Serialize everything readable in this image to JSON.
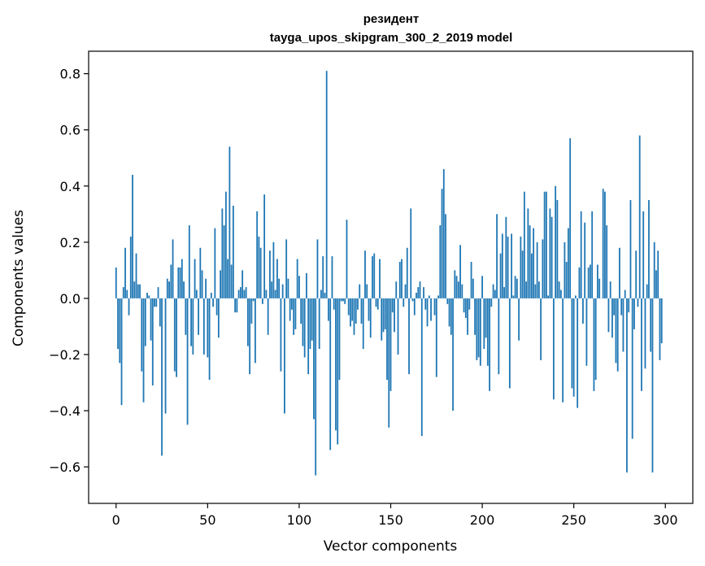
{
  "chart_data": {
    "type": "bar",
    "title": "резидент",
    "subtitle": "tayga_upos_skipgram_300_2_2019 model",
    "xlabel": "Vector components",
    "ylabel": "Components values",
    "xlim": [
      -15,
      315
    ],
    "ylim": [
      -0.73,
      0.88
    ],
    "xticks": [
      0,
      50,
      100,
      150,
      200,
      250,
      300
    ],
    "xtick_labels": [
      "0",
      "50",
      "100",
      "150",
      "200",
      "250",
      "300"
    ],
    "yticks": [
      -0.6,
      -0.4,
      -0.2,
      0.0,
      0.2,
      0.4,
      0.6,
      0.8
    ],
    "ytick_labels": [
      "−0.6",
      "−0.4",
      "−0.2",
      "0.0",
      "0.2",
      "0.4",
      "0.6",
      "0.8"
    ],
    "bar_color": "#1f77b4",
    "grid": false,
    "x_start": 0,
    "values": [
      0.11,
      -0.18,
      -0.23,
      -0.38,
      0.04,
      0.18,
      0.03,
      -0.06,
      0.22,
      0.44,
      0.06,
      0.16,
      0.05,
      0.05,
      -0.26,
      -0.37,
      -0.17,
      0.02,
      0.01,
      -0.15,
      -0.31,
      -0.03,
      -0.03,
      0.04,
      -0.1,
      -0.56,
      0.0,
      -0.41,
      0.07,
      0.06,
      0.12,
      0.21,
      -0.26,
      -0.28,
      0.11,
      0.11,
      0.14,
      0.06,
      -0.13,
      -0.45,
      0.26,
      -0.17,
      -0.2,
      0.14,
      0.03,
      -0.13,
      0.18,
      0.1,
      -0.2,
      0.07,
      -0.21,
      -0.29,
      0.02,
      -0.03,
      0.25,
      -0.06,
      -0.14,
      0.1,
      0.32,
      0.26,
      0.38,
      0.14,
      0.54,
      0.12,
      0.33,
      -0.05,
      -0.05,
      0.03,
      0.04,
      0.1,
      0.03,
      0.04,
      -0.17,
      -0.27,
      -0.09,
      -0.01,
      -0.23,
      0.31,
      0.22,
      0.18,
      -0.02,
      0.37,
      0.03,
      -0.13,
      0.17,
      0.06,
      0.2,
      0.03,
      0.14,
      0.07,
      -0.26,
      0.05,
      -0.41,
      0.21,
      0.07,
      -0.08,
      -0.04,
      -0.13,
      -0.11,
      0.14,
      0.08,
      -0.09,
      -0.17,
      -0.21,
      0.09,
      -0.27,
      -0.18,
      -0.15,
      -0.43,
      -0.63,
      0.21,
      -0.18,
      0.03,
      0.15,
      0.02,
      0.81,
      -0.08,
      -0.54,
      0.15,
      -0.04,
      -0.47,
      -0.52,
      -0.29,
      -0.01,
      -0.01,
      -0.02,
      0.28,
      -0.06,
      -0.1,
      -0.08,
      -0.13,
      -0.09,
      -0.04,
      0.05,
      -0.09,
      -0.18,
      0.17,
      0.05,
      -0.08,
      -0.14,
      0.15,
      0.16,
      -0.03,
      -0.04,
      0.14,
      -0.15,
      -0.12,
      -0.11,
      -0.29,
      -0.46,
      -0.33,
      -0.05,
      -0.12,
      0.06,
      -0.2,
      0.13,
      0.14,
      -0.03,
      0.05,
      0.18,
      -0.27,
      0.32,
      -0.01,
      -0.06,
      0.02,
      0.04,
      0.06,
      -0.49,
      0.04,
      -0.04,
      -0.1,
      0.01,
      -0.08,
      0.0,
      -0.06,
      -0.28,
      0.01,
      0.26,
      0.39,
      0.46,
      0.3,
      -0.02,
      -0.1,
      -0.13,
      -0.4,
      0.1,
      0.08,
      0.06,
      0.19,
      0.05,
      -0.05,
      -0.07,
      -0.13,
      -0.04,
      0.13,
      0.07,
      -0.13,
      -0.22,
      -0.21,
      -0.24,
      0.08,
      -0.18,
      -0.14,
      -0.24,
      -0.33,
      -0.03,
      0.05,
      0.03,
      0.3,
      -0.27,
      0.16,
      0.23,
      0.04,
      0.29,
      0.22,
      -0.32,
      0.23,
      0.01,
      0.08,
      0.07,
      -0.15,
      0.22,
      0.17,
      0.38,
      0.06,
      0.32,
      0.26,
      0.16,
      0.25,
      0.05,
      0.2,
      0.06,
      -0.22,
      0.21,
      0.38,
      0.38,
      0.01,
      0.32,
      0.29,
      -0.36,
      0.4,
      0.35,
      0.06,
      0.03,
      -0.37,
      0.2,
      0.13,
      0.25,
      0.57,
      -0.32,
      -0.35,
      0.01,
      -0.39,
      0.11,
      0.31,
      -0.09,
      0.27,
      -0.24,
      0.11,
      0.12,
      0.31,
      -0.33,
      -0.29,
      0.12,
      0.07,
      0.0,
      0.39,
      0.38,
      0.26,
      -0.12,
      0.06,
      -0.14,
      -0.06,
      -0.23,
      -0.26,
      0.18,
      -0.06,
      -0.19,
      0.03,
      -0.62,
      -0.05,
      0.35,
      -0.5,
      -0.11,
      0.17,
      -0.03,
      0.58,
      -0.33,
      0.31,
      -0.25,
      0.05,
      0.35,
      -0.19,
      -0.62,
      0.2,
      0.1,
      0.17,
      -0.22,
      -0.16
    ]
  }
}
